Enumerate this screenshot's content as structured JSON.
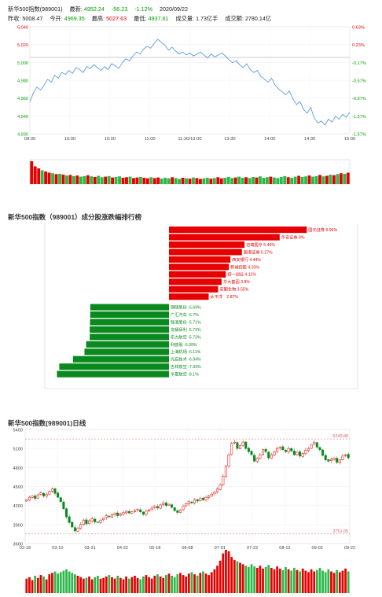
{
  "header": {
    "title": "新华500指数(989001)",
    "latest_label": "最新:",
    "latest": "4952.24",
    "change": "-56.23",
    "change_pct": "-1.12%",
    "date": "2020/09/22",
    "prev_close_label": "昨收:",
    "prev_close": "5008.47",
    "open_label": "今开:",
    "open": "4969.35",
    "high_label": "最高:",
    "high": "5027.63",
    "low_label": "最低:",
    "low": "4937.61",
    "volume_label": "成交量:",
    "volume": "1.73亿手",
    "turnover_label": "成交额:",
    "turnover": "2780.14亿"
  },
  "colors": {
    "up": "#e60000",
    "down": "#008a1e",
    "line": "#4a90d9",
    "ma": "#d03030"
  },
  "chart_data": [
    {
      "type": "line",
      "x_ticks": [
        "09:30",
        "10:00",
        "10:30",
        "11:00",
        "11:30/13:00",
        "13:30",
        "14:00",
        "14:30",
        "15:00"
      ],
      "y_left_ticks": [
        "5,040",
        "5,020",
        "5,000",
        "4,980",
        "4,960",
        "4,940",
        "4,930"
      ],
      "y_right_ticks": [
        "0.63%",
        "0.23%",
        "-0.17%",
        "-0.57%",
        "-0.97%",
        "-1.37%",
        "-1.57%"
      ],
      "ylim": [
        4930,
        5040
      ],
      "reference": 5008.47,
      "series": [
        {
          "values": [
            4963,
            4972,
            4978,
            4975,
            4980,
            4986,
            4983,
            4990,
            4987,
            4993,
            4991,
            4995,
            4992,
            4998,
            4996,
            4993,
            4999,
            4997,
            5001,
            4998,
            4995,
            4999,
            4996,
            5002,
            5000,
            4997,
            5003,
            5007,
            5005,
            5010,
            5014,
            5012,
            5017,
            5020,
            5018,
            5023,
            5027,
            5024,
            5021,
            5016,
            5019,
            5015,
            5012,
            5014,
            5011,
            5013,
            5010,
            5012,
            5014,
            5011,
            5008,
            5012,
            5009,
            5011,
            5013,
            5010,
            5006,
            5003,
            5005,
            5001,
            4998,
            5002,
            4996,
            4993,
            4995,
            4989,
            4986,
            4983,
            4987,
            4980,
            4976,
            4973,
            4970,
            4974,
            4966,
            4960,
            4963,
            4955,
            4951,
            4957,
            4946,
            4941,
            4943,
            4939,
            4945,
            4942,
            4948,
            4945,
            4950,
            4947,
            4952
          ]
        }
      ],
      "volume": [
        80,
        62,
        55,
        48,
        44,
        40,
        38,
        35,
        36,
        33,
        30,
        32,
        28,
        30,
        26,
        28,
        31,
        27,
        25,
        29,
        24,
        26,
        28,
        23,
        25,
        27,
        22,
        24,
        26,
        21,
        23,
        25,
        22,
        20,
        24,
        21,
        23,
        19,
        22,
        20,
        24,
        21,
        18,
        22,
        20,
        19,
        23,
        21,
        18,
        20,
        22,
        19,
        21,
        24,
        20,
        22,
        25,
        21,
        23,
        26,
        22,
        24,
        21,
        25,
        23,
        27,
        22,
        24,
        26,
        23,
        21,
        25,
        28,
        24,
        22,
        26,
        29,
        25,
        27,
        30,
        26,
        28,
        32,
        27,
        29,
        33,
        31,
        35,
        38,
        36,
        40
      ]
    },
    {
      "type": "bar",
      "title": "新华500指数（989001）成分股涨跌幅排行榜",
      "bars": [
        {
          "label": "国元证券 9.96%",
          "value": 9.96
        },
        {
          "label": "华安证券 8%",
          "value": 8
        },
        {
          "label": "迈瑞医疗 5.46%",
          "value": 5.46
        },
        {
          "label": "国海证券 5.27%",
          "value": 5.27
        },
        {
          "label": "西安银行 4.44%",
          "value": 4.44
        },
        {
          "label": "新城控股 4.33%",
          "value": 4.33
        },
        {
          "label": "招一创业 4.11%",
          "value": 4.11
        },
        {
          "label": "华大基因 3.8%",
          "value": 3.8
        },
        {
          "label": "安图生物 3.55%",
          "value": 3.55
        },
        {
          "label": "太平洋　2.87%",
          "value": 2.87
        },
        {
          "label": "铜陵股份 -5.69%",
          "value": -5.69
        },
        {
          "label": "广汇汽车 -5.7%",
          "value": -5.7
        },
        {
          "label": "锦浪股份 -5.71%",
          "value": -5.71
        },
        {
          "label": "龙蟒佰利 -5.73%",
          "value": -5.73
        },
        {
          "label": "东方航空 -5.73%",
          "value": -5.73
        },
        {
          "label": "利欧股 -5.99%",
          "value": -5.99
        },
        {
          "label": "上海机场 -6.11%",
          "value": -6.11
        },
        {
          "label": "光启技术 -6.94%",
          "value": -6.94
        },
        {
          "label": "吉祥航空 -7.93%",
          "value": -7.93
        },
        {
          "label": "华夏航空 -8.1%",
          "value": -8.1
        }
      ]
    },
    {
      "type": "candlestick",
      "title": "新华500指数(989001)日线",
      "x_ticks": [
        "02-18",
        "03-10",
        "03-31",
        "04-22",
        "05-18",
        "06-08",
        "07-01",
        "07-22",
        "08-12",
        "09-02",
        "09-22"
      ],
      "y_ticks": [
        "5400",
        "5100",
        "4800",
        "4500",
        "4200",
        "3900",
        "3600"
      ],
      "ylim": [
        3600,
        5400
      ],
      "max_label": "5249.88",
      "min_label": "3751.05",
      "closes": [
        4290,
        4330,
        4350,
        4310,
        4370,
        4400,
        4350,
        4380,
        4420,
        4460,
        4390,
        4330,
        4260,
        4150,
        4020,
        3930,
        3860,
        3800,
        3840,
        3900,
        3970,
        3910,
        3960,
        3990,
        3940,
        3930,
        3970,
        4000,
        4040,
        4020,
        4050,
        4080,
        4040,
        4070,
        4090,
        4110,
        4080,
        4100,
        4120,
        4140,
        4100,
        4060,
        4110,
        4130,
        4160,
        4190,
        4160,
        4210,
        4240,
        4200,
        4220,
        4170,
        4120,
        4090,
        4130,
        4190,
        4230,
        4260,
        4240,
        4290,
        4270,
        4310,
        4290,
        4330,
        4350,
        4380,
        4410,
        4460,
        4530,
        4660,
        4820,
        5000,
        5180,
        5200,
        5100,
        5150,
        5200,
        5100,
        5050,
        5000,
        4900,
        4950,
        5000,
        5080,
        5050,
        4950,
        5000,
        5050,
        5100,
        5120,
        5080,
        5050,
        5100,
        5060,
        5000,
        5040,
        4980,
        5020,
        5070,
        5100,
        5160,
        5200,
        5120,
        5080,
        4990,
        4920,
        4900,
        4930,
        4950,
        4880,
        4920,
        4980,
        5000,
        4952
      ],
      "volume": [
        20,
        22,
        18,
        24,
        21,
        25,
        23,
        19,
        26,
        28,
        30,
        27,
        29,
        31,
        33,
        30,
        28,
        26,
        24,
        22,
        20,
        21,
        23,
        19,
        22,
        24,
        20,
        21,
        23,
        25,
        22,
        20,
        24,
        21,
        19,
        23,
        20,
        22,
        24,
        21,
        19,
        23,
        25,
        22,
        20,
        24,
        26,
        23,
        21,
        25,
        27,
        24,
        22,
        26,
        28,
        25,
        23,
        27,
        29,
        26,
        24,
        28,
        30,
        27,
        25,
        29,
        33,
        38,
        45,
        55,
        60,
        58,
        50,
        46,
        44,
        42,
        40,
        38,
        36,
        40,
        37,
        35,
        38,
        34,
        36,
        39,
        35,
        33,
        37,
        34,
        32,
        36,
        33,
        31,
        35,
        32,
        30,
        34,
        31,
        29,
        33,
        30,
        32,
        35,
        31,
        29,
        33,
        30,
        28,
        32,
        29,
        31,
        34,
        30
      ]
    }
  ]
}
